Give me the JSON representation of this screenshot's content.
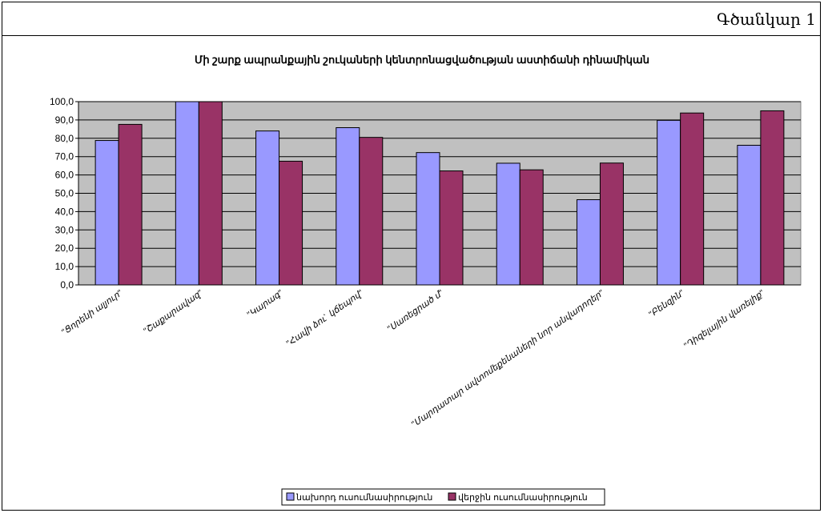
{
  "figure_label": "Գծանկար 1",
  "chart_data": {
    "type": "bar",
    "title": "Մի շարք ապրանքային շուկաների կենտրոնացվածության աստիճանի դինամիկան",
    "xlabel": "",
    "ylabel": "",
    "categories": [
      "\"Ցորենի ալյուր\"",
      "\"Շաքարավազ\"",
      "\"Կարագ\"",
      "\"Հավի ձու` կճեպով\"",
      "\"Սառեցրած մ\"",
      "",
      "\"Մարդատար ավտոմեքենաների նոր անվադողեր\"",
      "\"Բենզին\"",
      "\"Դիզելային վառելիք\""
    ],
    "series": [
      {
        "name": "նախորդ ուսումնասիրություն",
        "color": "#9999ff",
        "values": [
          78.8,
          100.0,
          84.0,
          85.8,
          72.2,
          66.4,
          46.5,
          89.8,
          76.2
        ]
      },
      {
        "name": "վերջին ուսումնասիրություն",
        "color": "#993366",
        "values": [
          87.6,
          100.0,
          67.5,
          80.5,
          62.2,
          62.8,
          66.5,
          93.8,
          95.0
        ]
      }
    ],
    "ylim": [
      0,
      100
    ],
    "yticks": [
      "0,0",
      "10,0",
      "20,0",
      "30,0",
      "40,0",
      "50,0",
      "60,0",
      "70,0",
      "80,0",
      "90,0",
      "100,0"
    ],
    "plot_background": "#c0c0c0",
    "grid": true,
    "legend_position": "bottom-center"
  }
}
